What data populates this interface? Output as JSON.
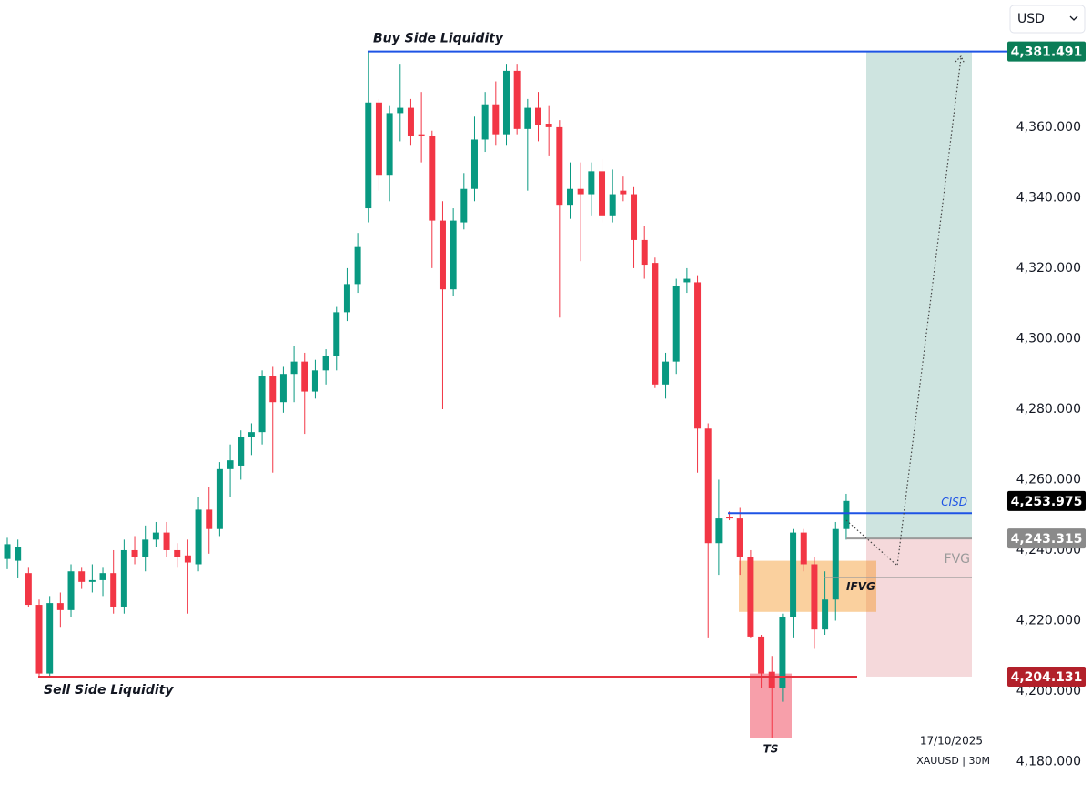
{
  "chart_data": {
    "type": "candlestick",
    "currency": "USD",
    "date": "17/10/2025",
    "symbol": "XAUUSD | 30M",
    "up_color": "#089981",
    "down_color": "#f23645",
    "ylim": [
      4171.1,
      4396.1
    ],
    "yticks": [
      {
        "value": 4180,
        "label": "4,180.000"
      },
      {
        "value": 4200,
        "label": "4,200.000"
      },
      {
        "value": 4220,
        "label": "4,220.000"
      },
      {
        "value": 4240,
        "label": "4,240.000"
      },
      {
        "value": 4260,
        "label": "4,260.000"
      },
      {
        "value": 4280,
        "label": "4,280.000"
      },
      {
        "value": 4300,
        "label": "4,300.000"
      },
      {
        "value": 4320,
        "label": "4,320.000"
      },
      {
        "value": 4340,
        "label": "4,340.000"
      },
      {
        "value": 4360,
        "label": "4,360.000"
      }
    ],
    "open": [
      4237.5,
      4237,
      4233.5,
      4224.5,
      4205,
      4225,
      4223,
      4234,
      4231,
      4231.5,
      4233.5,
      4224,
      4240,
      4238,
      4243,
      4245,
      4240,
      4238.5,
      4236,
      4251.5,
      4246,
      4263,
      4264,
      4272,
      4273.5,
      4289.5,
      4282,
      4290,
      4293.5,
      4285,
      4291,
      4295,
      4307.5,
      4315.5,
      4337,
      4367,
      4346.5,
      4364,
      4365.5,
      4358,
      4357.5,
      4333.5,
      4314,
      4333,
      4342.5,
      4356.5,
      4366.5,
      4358,
      4376,
      4359.5,
      4365.5,
      4361,
      4360,
      4338,
      4342.5,
      4341,
      4347.5,
      4335,
      4342,
      4341,
      4328,
      4321.5,
      4287,
      4293.5,
      4316,
      4316,
      4274.5,
      4242,
      4249.5,
      4249,
      4238,
      4215.5,
      4205.5,
      4201,
      4221,
      4245,
      4236,
      4217.5,
      4226,
      4246
    ],
    "high": [
      4243.5,
      4243,
      4235,
      4226,
      4227,
      4228,
      4236,
      4235,
      4236,
      4235,
      4240,
      4243,
      4244,
      4247,
      4248,
      4248,
      4242,
      4243,
      4255,
      4258,
      4265,
      4270,
      4274,
      4276,
      4291,
      4292,
      4292,
      4298,
      4296,
      4294,
      4297,
      4309,
      4320,
      4330,
      4381.5,
      4368,
      4366,
      4378,
      4368,
      4370,
      4359,
      4339,
      4337,
      4347,
      4363,
      4370,
      4373,
      4378,
      4378,
      4368,
      4370,
      4366,
      4362,
      4350,
      4350,
      4350,
      4351,
      4348,
      4346,
      4343,
      4332,
      4323,
      4296,
      4317,
      4320,
      4318,
      4276,
      4260,
      4251,
      4252,
      4240,
      4216,
      4210,
      4222,
      4246,
      4246,
      4238,
      4234,
      4248,
      4256
    ],
    "low": [
      4234.6,
      4232,
      4223.8,
      4204,
      4204,
      4218,
      4221,
      4229,
      4228,
      4227,
      4222,
      4222,
      4236,
      4234,
      4241,
      4238,
      4235,
      4222,
      4234,
      4239,
      4244,
      4255,
      4260,
      4267,
      4270,
      4262,
      4279,
      4282,
      4273,
      4283,
      4287,
      4291,
      4305,
      4313,
      4333,
      4342,
      4339,
      4356,
      4355,
      4350,
      4320,
      4280,
      4312,
      4331,
      4339,
      4353,
      4355,
      4355,
      4358,
      4342,
      4356,
      4352,
      4306,
      4334,
      4322,
      4335,
      4333,
      4333,
      4339,
      4320,
      4317,
      4286,
      4283,
      4290,
      4313,
      4262,
      4215,
      4233,
      4248.5,
      4233,
      4215,
      4201,
      4186.6,
      4197,
      4215,
      4234,
      4212,
      4216,
      4220,
      4243
    ],
    "close": [
      4241.7,
      4241,
      4224.5,
      4205,
      4225,
      4223,
      4234,
      4231,
      4231.5,
      4233.5,
      4224,
      4240,
      4238,
      4243,
      4245,
      4240,
      4238,
      4236.5,
      4251.5,
      4246,
      4263,
      4265.5,
      4272,
      4273.5,
      4289.5,
      4282,
      4290,
      4293.5,
      4285,
      4291,
      4295,
      4307.5,
      4315.5,
      4326,
      4367,
      4346.5,
      4364,
      4365.5,
      4357.5,
      4357.5,
      4333.5,
      4314,
      4333.5,
      4342.5,
      4356.5,
      4366.5,
      4358,
      4376,
      4359.5,
      4365.5,
      4360.5,
      4360,
      4338,
      4342.5,
      4341,
      4347.5,
      4335,
      4341,
      4341,
      4328,
      4321,
      4287,
      4293.5,
      4315,
      4317,
      4274.5,
      4242,
      4249,
      4249,
      4238,
      4215.5,
      4205,
      4201,
      4221,
      4245,
      4236,
      4217.5,
      4226,
      4246,
      4253.975
    ],
    "price_labels": [
      {
        "value": 4381.491,
        "label": "4,381.491",
        "color": "#0b7d57"
      },
      {
        "value": 4253.975,
        "label": "4,253.975",
        "color": "#000000"
      },
      {
        "value": 4243.315,
        "label": "4,243.315",
        "color": "#8a8a8a"
      },
      {
        "value": 4204.131,
        "label": "4,204.131",
        "color": "#b2202a"
      }
    ],
    "annotations": [
      {
        "text": "Buy Side Liquidity"
      },
      {
        "text": "Sell Side Liquidity"
      },
      {
        "text": "CISD",
        "value": 4250.5
      },
      {
        "text": "FVG",
        "value": 4232.3
      },
      {
        "text": "IFVG",
        "range": [
          4222.5,
          4237
        ]
      },
      {
        "text": "TS",
        "range": [
          4186.6,
          4205
        ]
      }
    ]
  }
}
